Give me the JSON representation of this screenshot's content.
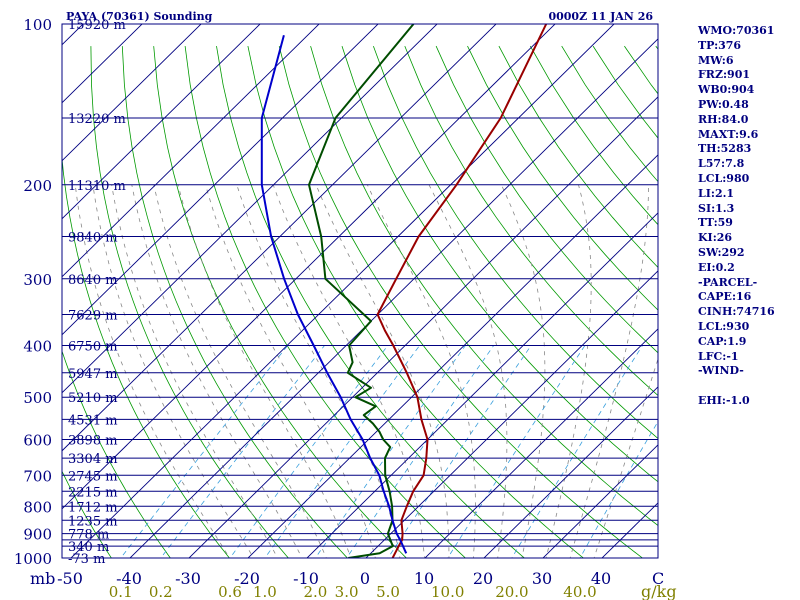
{
  "chart_data": {
    "type": "line",
    "title": "PAYA (70361) Sounding",
    "time_label": "0000Z 11 JAN 26",
    "ylabel": "mb",
    "xlabel": "C",
    "mixing_ratio_unit": "g/kg",
    "pressure_ticks": [
      {
        "p": 100,
        "label": "100"
      },
      {
        "p": 200,
        "label": "200"
      },
      {
        "p": 300,
        "label": "300"
      },
      {
        "p": 400,
        "label": "400"
      },
      {
        "p": 500,
        "label": "500"
      },
      {
        "p": 600,
        "label": "600"
      },
      {
        "p": 700,
        "label": "700"
      },
      {
        "p": 800,
        "label": "800"
      },
      {
        "p": 900,
        "label": "900"
      },
      {
        "p": 1000,
        "label": "1000"
      }
    ],
    "isobars": [
      100,
      150,
      200,
      250,
      300,
      350,
      400,
      450,
      500,
      550,
      600,
      650,
      700,
      750,
      800,
      850,
      900,
      925,
      950,
      1000
    ],
    "height_labels": [
      {
        "p": 100,
        "label": "15920 m"
      },
      {
        "p": 150,
        "label": "13220 m"
      },
      {
        "p": 200,
        "label": "11310 m"
      },
      {
        "p": 250,
        "label": "9840 m"
      },
      {
        "p": 300,
        "label": "8640 m"
      },
      {
        "p": 350,
        "label": "7629 m"
      },
      {
        "p": 400,
        "label": "6750 m"
      },
      {
        "p": 450,
        "label": "5947 m"
      },
      {
        "p": 500,
        "label": "5210 m"
      },
      {
        "p": 550,
        "label": "4531 m"
      },
      {
        "p": 600,
        "label": "3898 m"
      },
      {
        "p": 650,
        "label": "3304 m"
      },
      {
        "p": 700,
        "label": "2745 m"
      },
      {
        "p": 750,
        "label": "2215 m"
      },
      {
        "p": 800,
        "label": "1712 m"
      },
      {
        "p": 850,
        "label": "1235 m"
      },
      {
        "p": 900,
        "label": "778 m"
      },
      {
        "p": 950,
        "label": "340 m"
      },
      {
        "p": 1000,
        "label": "-73 m"
      }
    ],
    "temp_ticks": [
      {
        "t": -50,
        "label": "-50"
      },
      {
        "t": -40,
        "label": "-40"
      },
      {
        "t": -30,
        "label": "-30"
      },
      {
        "t": -20,
        "label": "-20"
      },
      {
        "t": -10,
        "label": "-10"
      },
      {
        "t": 0,
        "label": "0"
      },
      {
        "t": 10,
        "label": "10"
      },
      {
        "t": 20,
        "label": "20"
      },
      {
        "t": 30,
        "label": "30"
      },
      {
        "t": 40,
        "label": "40"
      }
    ],
    "mixing_ratio_labels": [
      "0.1",
      "0.2",
      "0.6",
      "1.0",
      "2.0",
      "3.0",
      "5.0",
      "10.0",
      "20.0",
      "40.0"
    ],
    "series": [
      {
        "name": "temperature",
        "color": "#990000",
        "points": [
          [
            1000,
            4.5
          ],
          [
            950,
            3.5
          ],
          [
            925,
            3.0
          ],
          [
            900,
            2.0
          ],
          [
            850,
            -0.5
          ],
          [
            800,
            -2.0
          ],
          [
            750,
            -3.5
          ],
          [
            700,
            -4.5
          ],
          [
            650,
            -7.0
          ],
          [
            600,
            -10.0
          ],
          [
            550,
            -14.5
          ],
          [
            500,
            -19.0
          ],
          [
            450,
            -25.0
          ],
          [
            400,
            -32.0
          ],
          [
            375,
            -36.0
          ],
          [
            350,
            -40.0
          ],
          [
            300,
            -43.0
          ],
          [
            250,
            -46.5
          ],
          [
            200,
            -49.0
          ],
          [
            150,
            -53.0
          ],
          [
            100,
            -61.5
          ]
        ]
      },
      {
        "name": "dewpoint",
        "color": "#004d00",
        "points": [
          [
            1000,
            -3.0
          ],
          [
            980,
            1.5
          ],
          [
            950,
            2.5
          ],
          [
            900,
            -0.5
          ],
          [
            850,
            -2.0
          ],
          [
            800,
            -4.5
          ],
          [
            750,
            -7.5
          ],
          [
            700,
            -11.0
          ],
          [
            650,
            -14.0
          ],
          [
            620,
            -15.0
          ],
          [
            600,
            -17.5
          ],
          [
            580,
            -19.5
          ],
          [
            560,
            -22.0
          ],
          [
            540,
            -25.0
          ],
          [
            520,
            -24.5
          ],
          [
            500,
            -29.5
          ],
          [
            480,
            -28.5
          ],
          [
            450,
            -35.0
          ],
          [
            430,
            -36.0
          ],
          [
            400,
            -39.5
          ],
          [
            360,
            -40.0
          ],
          [
            300,
            -55.0
          ],
          [
            250,
            -63.0
          ],
          [
            200,
            -74.0
          ],
          [
            150,
            -81.0
          ],
          [
            100,
            -84.0
          ]
        ]
      },
      {
        "name": "parcel",
        "color": "#0000cc",
        "points": [
          [
            980,
            6.0
          ],
          [
            930,
            3.0
          ],
          [
            900,
            1.0
          ],
          [
            850,
            -2.0
          ],
          [
            800,
            -5.0
          ],
          [
            750,
            -8.5
          ],
          [
            700,
            -12.0
          ],
          [
            650,
            -16.5
          ],
          [
            600,
            -21.0
          ],
          [
            550,
            -26.5
          ],
          [
            500,
            -32.0
          ],
          [
            450,
            -38.5
          ],
          [
            400,
            -45.5
          ],
          [
            350,
            -53.5
          ],
          [
            300,
            -62.0
          ],
          [
            250,
            -71.5
          ],
          [
            200,
            -82.0
          ],
          [
            150,
            -93.5
          ],
          [
            105,
            -104.0
          ]
        ]
      }
    ]
  },
  "side_panel": {
    "items": [
      "WMO:70361",
      "TP:376",
      "MW:6",
      "FRZ:901",
      "WB0:904",
      "PW:0.48",
      "RH:84.0",
      "MAXT:9.6",
      "TH:5283",
      "L57:7.8",
      "LCL:980",
      "LI:2.1",
      "SI:1.3",
      "TT:59",
      "KI:26",
      "SW:292",
      "EI:0.2",
      "-PARCEL-",
      "CAPE:16",
      "CINH:74716",
      "LCL:930",
      "CAP:1.9",
      "LFC:-1",
      "-WIND-",
      "",
      "EHI:-1.0"
    ]
  },
  "colors": {
    "frame": "#000080",
    "isobar": "#000080",
    "isotherm": "#000080",
    "dry_adiabat": "#009900",
    "moist_adiabat": "#888888",
    "mixing_ratio": "#3aa0dd",
    "temp_tick": "#000080",
    "mr_label": "#808000"
  }
}
